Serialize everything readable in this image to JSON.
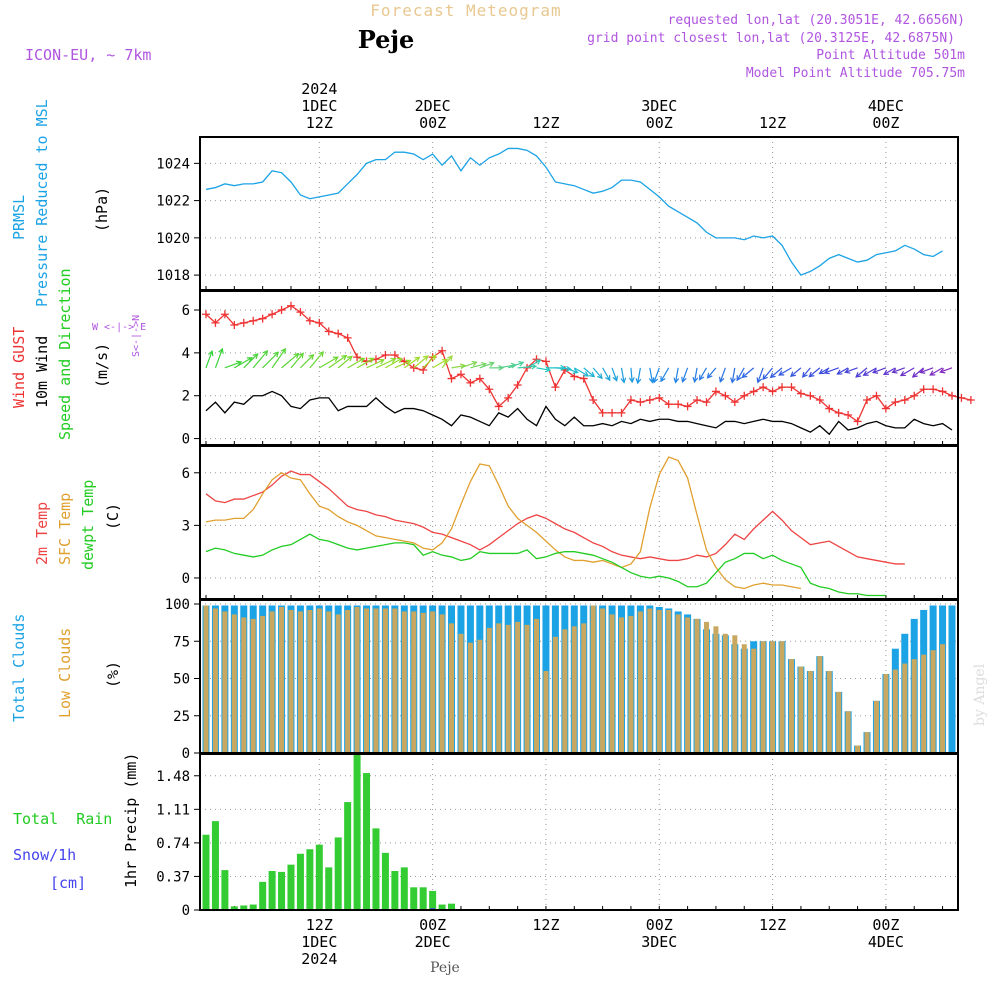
{
  "header": {
    "forecast_title": "Forecast Meteogram",
    "location": "Peje",
    "model": "ICON-EU, ~ 7km",
    "requested": "requested lon,lat (20.3051E, 42.6656N)",
    "grid_point": "grid point closest lon,lat (20.3125E, 42.6875N)",
    "point_altitude": "Point Altitude 501m",
    "model_altitude": "Model Point Altitude 705.75m"
  },
  "footer": {
    "location": "Peje",
    "watermark": "by Angel"
  },
  "time_axis": {
    "top_labels": [
      {
        "t": 12,
        "lines": [
          "2024",
          "1DEC",
          "12Z"
        ]
      },
      {
        "t": 24,
        "lines": [
          "2DEC",
          "00Z"
        ]
      },
      {
        "t": 36,
        "lines": [
          "12Z"
        ]
      },
      {
        "t": 48,
        "lines": [
          "3DEC",
          "00Z"
        ]
      },
      {
        "t": 60,
        "lines": [
          "12Z"
        ]
      },
      {
        "t": 72,
        "lines": [
          "4DEC",
          "00Z"
        ]
      }
    ],
    "bottom_labels": [
      {
        "t": 12,
        "lines": [
          "12Z",
          "1DEC",
          "2024"
        ]
      },
      {
        "t": 24,
        "lines": [
          "00Z",
          "2DEC"
        ]
      },
      {
        "t": 36,
        "lines": [
          "12Z"
        ]
      },
      {
        "t": 48,
        "lines": [
          "00Z",
          "3DEC"
        ]
      },
      {
        "t": 60,
        "lines": [
          "12Z"
        ]
      },
      {
        "t": 72,
        "lines": [
          "00Z",
          "4DEC"
        ]
      }
    ]
  },
  "panel_labels": {
    "pressure": {
      "name": "PRMSL",
      "desc": "Pressure Reduced to MSL",
      "unit": "(hPa)"
    },
    "wind": {
      "gust": "Wind GUST",
      "wind10": "10m Wind",
      "dir": "Speed and Direction",
      "unit": "(m/s)",
      "compass_n": "N",
      "compass_s": "S",
      "compass_w": "W <-|-> E",
      "compass_ns": "S<-|->N"
    },
    "temp": {
      "t2m": "2m Temp",
      "sfc": "SFC Temp",
      "dew": "dewpt Temp",
      "unit": "(C)"
    },
    "clouds": {
      "total": "Total Clouds",
      "low": "Low Clouds",
      "unit": "(%)"
    },
    "precip": {
      "rain": "Total  Rain",
      "snow": "Snow/1h",
      "snow_unit": "[cm]",
      "unit": "1hr Precip (mm)"
    }
  },
  "colors": {
    "pressure": "#1ca3e6",
    "gust": "#ee3333",
    "wind": "#000000",
    "t2m": "#ee4444",
    "sfc": "#e0a030",
    "dew": "#22cc22",
    "total_cloud": "#1ca3e6",
    "low_cloud": "#c8a860",
    "rain": "#33cc33",
    "snow": "#4444ee",
    "purple": "#b055e0",
    "title": "#e8c890",
    "grid": "#999999"
  },
  "chart_data": [
    {
      "type": "line",
      "title": "PRMSL Pressure Reduced to MSL",
      "ylabel": "hPa",
      "x_start_hour": 0,
      "x_step_hours": 1,
      "ylim": [
        1017.2,
        1025.2
      ],
      "yticks": [
        1018,
        1020,
        1022,
        1024
      ],
      "series": [
        {
          "name": "PRMSL",
          "values": [
            1022.6,
            1022.7,
            1022.9,
            1022.8,
            1022.9,
            1022.9,
            1023.0,
            1023.6,
            1023.5,
            1023.0,
            1022.3,
            1022.1,
            1022.2,
            1022.3,
            1022.4,
            1022.9,
            1023.4,
            1024.0,
            1024.2,
            1024.2,
            1024.6,
            1024.6,
            1024.5,
            1024.2,
            1024.5,
            1023.9,
            1024.4,
            1023.6,
            1024.3,
            1023.9,
            1024.3,
            1024.5,
            1024.8,
            1024.8,
            1024.7,
            1024.4,
            1023.8,
            1023.0,
            1022.9,
            1022.8,
            1022.6,
            1022.4,
            1022.5,
            1022.7,
            1023.1,
            1023.1,
            1023.0,
            1022.6,
            1022.2,
            1021.7,
            1021.4,
            1021.1,
            1020.8,
            1020.3,
            1020.0,
            1020.0,
            1020.0,
            1019.9,
            1020.1,
            1020.0,
            1020.1,
            1019.6,
            1018.7,
            1018.0,
            1018.2,
            1018.5,
            1018.9,
            1019.1,
            1018.9,
            1018.7,
            1018.8,
            1019.1,
            1019.2,
            1019.3,
            1019.6,
            1019.4,
            1019.1,
            1019.0,
            1019.3
          ]
        }
      ]
    },
    {
      "type": "line",
      "title": "Wind GUST / 10m Wind Speed and Direction",
      "ylabel": "m/s",
      "x_start_hour": 0,
      "x_step_hours": 1,
      "ylim": [
        -0.3,
        6.7
      ],
      "yticks": [
        0,
        2,
        4,
        6
      ],
      "series": [
        {
          "name": "Wind GUST",
          "values": [
            5.8,
            5.4,
            5.8,
            5.3,
            5.4,
            5.5,
            5.6,
            5.8,
            6.0,
            6.2,
            5.9,
            5.5,
            5.4,
            5.0,
            4.9,
            4.7,
            3.8,
            3.6,
            3.7,
            3.9,
            3.9,
            3.6,
            3.3,
            3.2,
            3.8,
            4.1,
            2.8,
            3.0,
            2.6,
            2.8,
            2.3,
            1.5,
            1.9,
            2.5,
            3.3,
            3.7,
            3.6,
            2.4,
            3.2,
            2.9,
            2.8,
            1.8,
            1.2,
            1.2,
            1.2,
            1.8,
            1.7,
            1.8,
            1.9,
            1.6,
            1.6,
            1.5,
            1.8,
            1.7,
            2.2,
            2.0,
            1.7,
            2.0,
            2.2,
            2.4,
            2.2,
            2.4,
            2.4,
            2.1,
            2.0,
            1.8,
            1.4,
            1.2,
            1.1,
            0.8,
            1.8,
            2.0,
            1.4,
            1.7,
            1.8,
            2.0,
            2.3,
            2.3,
            2.2,
            2.0,
            1.9,
            1.8
          ]
        },
        {
          "name": "10m Wind",
          "values": [
            1.3,
            1.7,
            1.2,
            1.7,
            1.6,
            2.0,
            2.0,
            2.2,
            2.0,
            1.5,
            1.4,
            1.8,
            1.9,
            1.9,
            1.3,
            1.5,
            1.5,
            1.5,
            1.9,
            1.5,
            1.2,
            1.4,
            1.4,
            1.3,
            1.1,
            0.9,
            0.6,
            1.1,
            1.0,
            0.8,
            0.6,
            1.2,
            1.0,
            1.4,
            0.9,
            0.6,
            1.5,
            0.9,
            0.6,
            1.0,
            0.6,
            0.6,
            0.7,
            0.6,
            0.8,
            0.7,
            0.9,
            0.8,
            0.9,
            0.9,
            0.8,
            0.8,
            0.7,
            0.6,
            0.5,
            0.8,
            0.8,
            0.7,
            0.8,
            0.9,
            0.8,
            0.8,
            0.7,
            0.5,
            0.3,
            0.6,
            0.2,
            0.8,
            0.4,
            0.5,
            0.7,
            0.8,
            0.6,
            0.5,
            0.5,
            0.9,
            0.7,
            0.6,
            0.7,
            0.4
          ]
        }
      ],
      "direction_arrows": {
        "hours": [
          0,
          1,
          2,
          3,
          4,
          5,
          6,
          7,
          8,
          9,
          10,
          11,
          12,
          13,
          14,
          15,
          16,
          17,
          18,
          19,
          20,
          21,
          22,
          23,
          24,
          25,
          26,
          27,
          28,
          29,
          30,
          31,
          32,
          33,
          34,
          35,
          36,
          37,
          38,
          39,
          40,
          41,
          42,
          43,
          44,
          45,
          46,
          47,
          48,
          49,
          50,
          51,
          52,
          53,
          54,
          55,
          56,
          57,
          58,
          59,
          60,
          61,
          62,
          63,
          64,
          65,
          66,
          67,
          68,
          69,
          70,
          71,
          72,
          73,
          74,
          75,
          76,
          77,
          78,
          79
        ],
        "to_bearing_deg": [
          20,
          20,
          70,
          60,
          45,
          40,
          45,
          35,
          50,
          40,
          45,
          40,
          60,
          55,
          50,
          60,
          60,
          65,
          65,
          60,
          65,
          55,
          50,
          45,
          60,
          40,
          80,
          70,
          75,
          70,
          90,
          80,
          70,
          85,
          60,
          100,
          90,
          95,
          110,
          120,
          130,
          140,
          150,
          160,
          170,
          175,
          190,
          170,
          200,
          210,
          190,
          200,
          190,
          210,
          220,
          200,
          190,
          210,
          230,
          200,
          220,
          230,
          240,
          230,
          220,
          230,
          240,
          250,
          240,
          250,
          230,
          240,
          250,
          240,
          250,
          240,
          230,
          250,
          240,
          250
        ]
      }
    },
    {
      "type": "line",
      "title": "2m Temp / SFC Temp / dewpt Temp",
      "ylabel": "C",
      "x_start_hour": 0,
      "x_step_hours": 1,
      "ylim": [
        -1.2,
        7.3
      ],
      "yticks": [
        0,
        3,
        6
      ],
      "series": [
        {
          "name": "2m Temp",
          "values": [
            4.8,
            4.4,
            4.3,
            4.5,
            4.5,
            4.7,
            4.9,
            5.3,
            5.8,
            6.1,
            5.9,
            5.9,
            5.5,
            5.1,
            4.6,
            4.1,
            3.9,
            3.8,
            3.6,
            3.5,
            3.3,
            3.2,
            3.1,
            2.9,
            2.6,
            2.5,
            2.3,
            2.1,
            1.9,
            1.6,
            1.9,
            2.3,
            2.7,
            3.1,
            3.4,
            3.6,
            3.4,
            3.1,
            2.8,
            2.6,
            2.3,
            2.0,
            1.8,
            1.5,
            1.3,
            1.2,
            1.1,
            1.2,
            1.1,
            1.0,
            1.0,
            1.1,
            1.3,
            1.2,
            1.4,
            1.9,
            2.5,
            2.2,
            2.8,
            3.3,
            3.8,
            3.3,
            2.7,
            2.3,
            1.9,
            2.0,
            2.1,
            1.8,
            1.5,
            1.2,
            1.1,
            1.0,
            0.9,
            0.8,
            0.8
          ]
        },
        {
          "name": "SFC Temp",
          "values": [
            3.2,
            3.3,
            3.3,
            3.4,
            3.4,
            3.9,
            4.8,
            5.6,
            6.0,
            5.7,
            5.6,
            4.8,
            4.1,
            3.9,
            3.5,
            3.2,
            3.0,
            2.7,
            2.4,
            2.3,
            2.2,
            2.1,
            2.0,
            1.7,
            1.6,
            2.0,
            2.8,
            4.2,
            5.5,
            6.5,
            6.4,
            5.3,
            4.1,
            3.4,
            3.0,
            2.6,
            2.1,
            1.6,
            1.2,
            1.0,
            1.0,
            0.9,
            1.0,
            0.8,
            0.6,
            0.8,
            1.5,
            4.0,
            5.9,
            6.9,
            6.7,
            5.7,
            3.6,
            1.6,
            0.6,
            -0.1,
            -0.5,
            -0.6,
            -0.4,
            -0.3,
            -0.4,
            -0.4,
            -0.5,
            -0.6
          ]
        },
        {
          "name": "dewpt Temp",
          "values": [
            1.5,
            1.7,
            1.6,
            1.4,
            1.3,
            1.2,
            1.3,
            1.6,
            1.8,
            1.9,
            2.2,
            2.5,
            2.2,
            2.1,
            1.9,
            1.7,
            1.6,
            1.7,
            1.8,
            1.9,
            2.0,
            2.0,
            1.9,
            1.3,
            1.5,
            1.3,
            1.2,
            1.0,
            1.1,
            1.5,
            1.4,
            1.4,
            1.4,
            1.4,
            1.6,
            1.1,
            1.2,
            1.4,
            1.5,
            1.5,
            1.4,
            1.3,
            1.1,
            0.9,
            0.6,
            0.3,
            0.1,
            0.0,
            0.1,
            0.0,
            -0.2,
            -0.5,
            -0.5,
            -0.3,
            0.3,
            0.9,
            1.1,
            1.4,
            1.4,
            1.1,
            1.3,
            1.0,
            0.8,
            0.6,
            -0.3,
            -0.5,
            -0.6,
            -0.8,
            -0.9,
            -0.9,
            -1.0,
            -1.0,
            -1.0
          ]
        }
      ]
    },
    {
      "type": "bar",
      "title": "Total Clouds / Low Clouds",
      "ylabel": "%",
      "x_start_hour": 0,
      "x_step_hours": 1,
      "ylim": [
        0,
        100
      ],
      "yticks": [
        0,
        25,
        50,
        75,
        100
      ],
      "series": [
        {
          "name": "Total Clouds",
          "values": [
            99,
            99,
            99,
            99,
            99,
            99,
            99,
            99,
            99,
            99,
            99,
            99,
            99,
            99,
            99,
            99,
            99,
            99,
            99,
            99,
            99,
            99,
            99,
            99,
            99,
            99,
            99,
            99,
            99,
            99,
            99,
            99,
            99,
            99,
            99,
            99,
            99,
            99,
            99,
            99,
            99,
            99,
            99,
            99,
            99,
            99,
            99,
            99,
            98,
            97,
            95,
            93,
            90,
            83,
            80,
            79,
            73,
            70,
            75,
            75,
            75,
            75,
            63,
            58,
            55,
            65,
            55,
            41,
            28,
            5,
            14,
            35,
            53,
            70,
            80,
            90,
            96,
            99,
            99,
            99
          ]
        },
        {
          "name": "Low Clouds",
          "values": [
            99,
            97,
            95,
            93,
            91,
            90,
            92,
            95,
            98,
            96,
            95,
            96,
            97,
            95,
            93,
            96,
            98,
            97,
            97,
            97,
            97,
            95,
            95,
            94,
            95,
            93,
            87,
            80,
            74,
            76,
            84,
            87,
            86,
            88,
            86,
            90,
            55,
            78,
            83,
            85,
            87,
            99,
            97,
            93,
            91,
            92,
            95,
            97,
            96,
            96,
            93,
            91,
            90,
            88,
            85,
            80,
            79,
            73,
            70,
            75,
            75,
            75,
            63,
            58,
            55,
            65,
            55,
            41,
            28,
            5,
            14,
            35,
            53,
            56,
            60,
            63,
            66,
            69,
            73
          ]
        }
      ]
    },
    {
      "type": "bar",
      "title": "1hr Precip",
      "ylabel": "mm",
      "x_start_hour": 0,
      "x_step_hours": 1,
      "ylim": [
        0,
        1.72
      ],
      "yticks": [
        0,
        0.37,
        0.74,
        1.11,
        1.48
      ],
      "series": [
        {
          "name": "Total Rain",
          "values": [
            0.83,
            0.98,
            0.44,
            0.04,
            0.05,
            0.06,
            0.31,
            0.43,
            0.42,
            0.5,
            0.62,
            0.67,
            0.72,
            0.47,
            0.8,
            1.19,
            1.71,
            1.51,
            0.9,
            0.63,
            0.43,
            0.47,
            0.25,
            0.25,
            0.21,
            0.06,
            0.07
          ]
        },
        {
          "name": "Snow/1h",
          "values": [
            0,
            0,
            0,
            0,
            0,
            0,
            0,
            0,
            0,
            0,
            0,
            0,
            0,
            0,
            0,
            0,
            0,
            0,
            0,
            0,
            0,
            0,
            0,
            0,
            0.02,
            0,
            0
          ]
        }
      ]
    }
  ]
}
